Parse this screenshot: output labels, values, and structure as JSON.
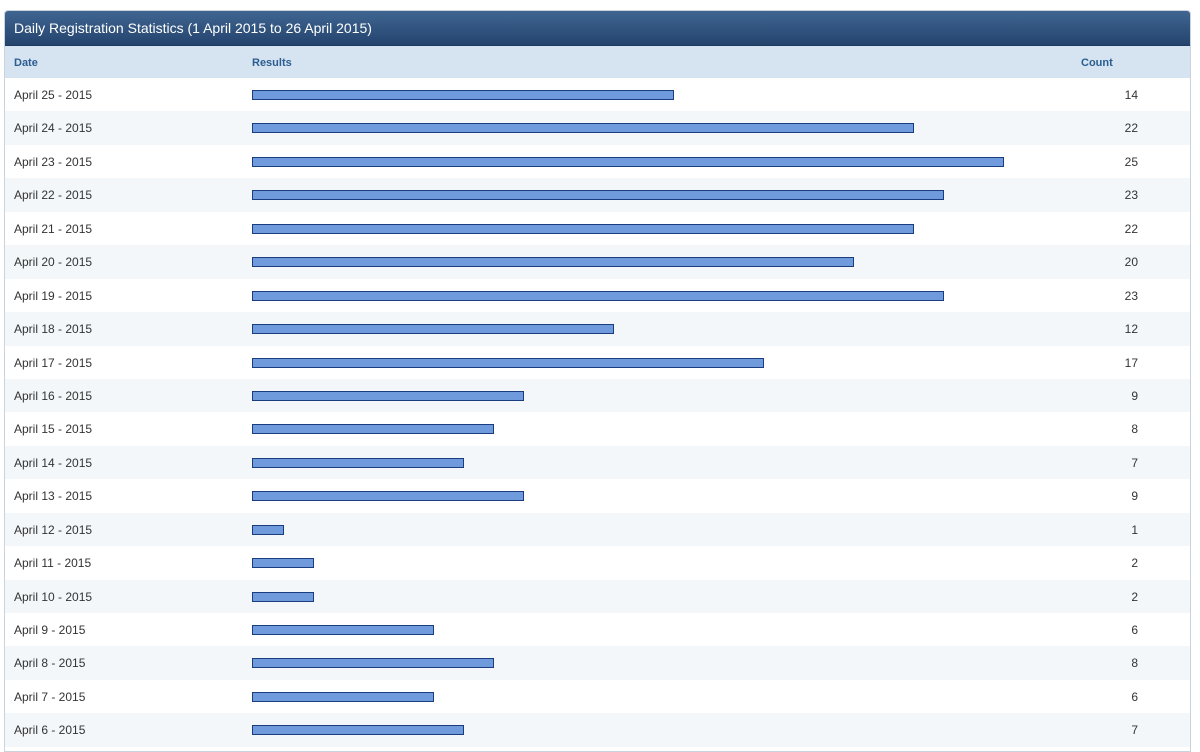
{
  "panel": {
    "title": "Daily Registration Statistics (1 April 2015 to 26 April 2015)"
  },
  "columns": {
    "date": "Date",
    "results": "Results",
    "count": "Count"
  },
  "colors": {
    "header": "#2e5583",
    "bar_fill": "#6f9bdc",
    "bar_border": "#1a3d80",
    "column_header_bg": "#d6e4f1"
  },
  "chart_data": {
    "type": "bar",
    "categories": [
      "April 25 - 2015",
      "April 24 - 2015",
      "April 23 - 2015",
      "April 22 - 2015",
      "April 21 - 2015",
      "April 20 - 2015",
      "April 19 - 2015",
      "April 18 - 2015",
      "April 17 - 2015",
      "April 16 - 2015",
      "April 15 - 2015",
      "April 14 - 2015",
      "April 13 - 2015",
      "April 12 - 2015",
      "April 11 - 2015",
      "April 10 - 2015",
      "April 9 - 2015",
      "April 8 - 2015",
      "April 7 - 2015",
      "April 6 - 2015"
    ],
    "values": [
      14,
      22,
      25,
      23,
      22,
      20,
      23,
      12,
      17,
      9,
      8,
      7,
      9,
      1,
      2,
      2,
      6,
      8,
      6,
      7
    ],
    "orientation": "horizontal",
    "max_value": 25
  }
}
